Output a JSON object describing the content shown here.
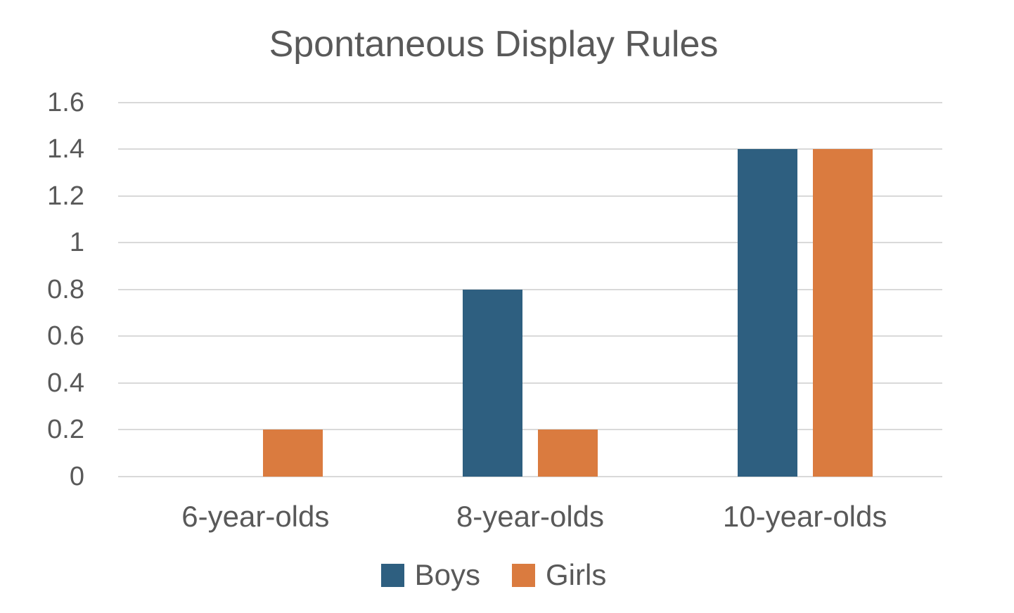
{
  "chart_data": {
    "type": "bar",
    "title": "Spontaneous Display Rules",
    "xlabel": "",
    "ylabel": "",
    "categories": [
      "6-year-olds",
      "8-year-olds",
      "10-year-olds"
    ],
    "series": [
      {
        "name": "Boys",
        "color": "#2E5F80",
        "values": [
          0,
          0.8,
          1.4
        ]
      },
      {
        "name": "Girls",
        "color": "#DA7B3F",
        "values": [
          0.2,
          0.2,
          1.4
        ]
      }
    ],
    "ylim": [
      0,
      1.6
    ],
    "ytick_step": 0.2,
    "yticks": [
      "1.6",
      "1.4",
      "1.2",
      "1",
      "0.8",
      "0.6",
      "0.4",
      "0.2",
      "0"
    ],
    "grid": true,
    "legend_position": "bottom",
    "colors": {
      "grid": "#D9D9D9",
      "text": "#595959",
      "background": "#FFFFFF"
    }
  }
}
